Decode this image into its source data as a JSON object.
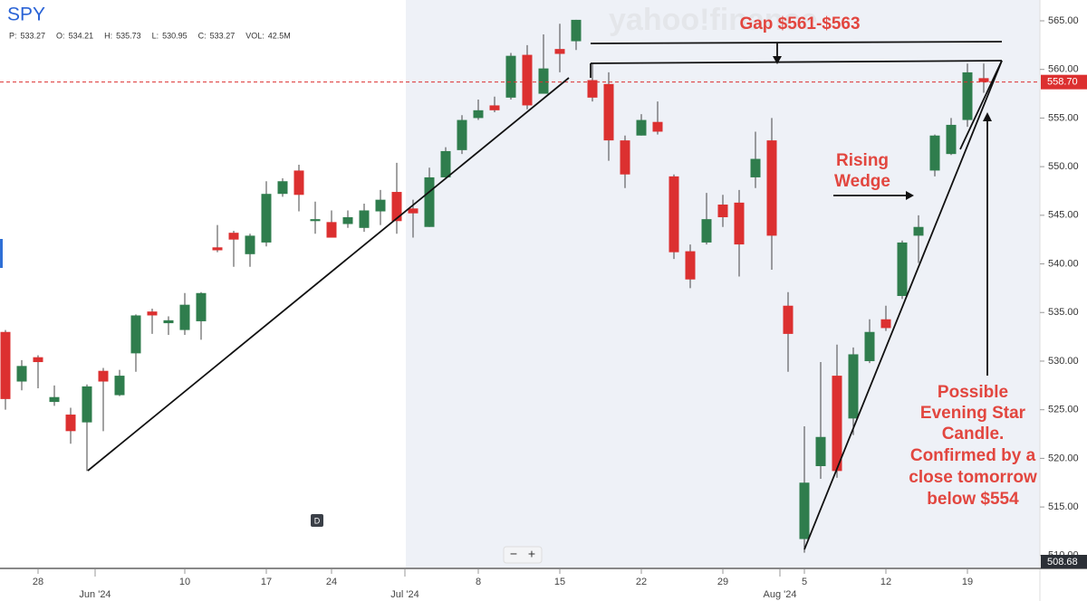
{
  "chart_data": {
    "type": "candlestick",
    "title": "SPY",
    "stats": [
      {
        "label": "P:",
        "value": "533.27"
      },
      {
        "label": "O:",
        "value": "534.21"
      },
      {
        "label": "H:",
        "value": "535.73"
      },
      {
        "label": "L:",
        "value": "530.95"
      },
      {
        "label": "C:",
        "value": "533.27"
      },
      {
        "label": "VOL:",
        "value": "42.5M"
      }
    ],
    "watermark": "yahoo!finance",
    "up_color": "#2f7d4d",
    "down_color": "#dc3030",
    "open": [
      533,
      527.9,
      530.4,
      525.8,
      524.5,
      523.7,
      529,
      526.5,
      530.8,
      535.1,
      533.9,
      533.2,
      534.1,
      541.7,
      543.2,
      541,
      542.2,
      547.2,
      549.6,
      544.4,
      544.3,
      544.1,
      543.7,
      545.4,
      547.4,
      545.7,
      543.8,
      548.9,
      551.7,
      555.0,
      556.3,
      557.1,
      561.5,
      557.5,
      562.1,
      562.9,
      558.9,
      558.5,
      552.7,
      553.2,
      554.6,
      549.0,
      541.3,
      542.2,
      546.1,
      546.3,
      548.9,
      552.7,
      535.7,
      511.7,
      519.2,
      528.5,
      524.1,
      530,
      534.3,
      536.7,
      542.9,
      549.6,
      551.3,
      554.8,
      559.1
    ],
    "high": [
      533.2,
      530.1,
      530.6,
      527.5,
      525.2,
      527.6,
      529.3,
      529.1,
      534.8,
      535.4,
      534.6,
      537.0,
      537.1,
      544.0,
      543.4,
      543.1,
      548.5,
      548.8,
      550.2,
      546.4,
      545.5,
      545.5,
      546.2,
      547.6,
      550.4,
      546.6,
      549.9,
      552.0,
      555.3,
      556.9,
      557.2,
      561.7,
      562.5,
      563.6,
      564.7,
      565.1,
      560.6,
      559.7,
      553.2,
      555.4,
      556.7,
      549.2,
      542.0,
      547.3,
      547.1,
      547.6,
      553.6,
      555.0,
      537.1,
      523.3,
      529.9,
      531.7,
      531.4,
      534.3,
      535.7,
      542.4,
      545.0,
      553.3,
      555.0,
      560.6,
      560.6
    ],
    "low": [
      525.0,
      527.0,
      527.2,
      525.4,
      521.5,
      518.7,
      522.8,
      526.4,
      528.9,
      532.8,
      532.7,
      532.7,
      532.2,
      541.2,
      539.7,
      539.7,
      541.8,
      546.9,
      545.4,
      543.1,
      542.7,
      543.7,
      543.3,
      544.0,
      543.1,
      542.7,
      543.8,
      548.7,
      551.3,
      554.8,
      555.6,
      556.9,
      555.9,
      557.5,
      559.7,
      562.0,
      556.7,
      550.6,
      547.8,
      553.2,
      553.3,
      540.5,
      537.5,
      542.0,
      543.8,
      538.7,
      547.8,
      539.4,
      528.9,
      510.3,
      517.9,
      518.0,
      522.4,
      529.8,
      533.1,
      536.4,
      540.1,
      549.0,
      551.2,
      554.1,
      557.6
    ],
    "close": [
      526.1,
      529.5,
      529.9,
      526.3,
      522.8,
      527.4,
      527.9,
      528.5,
      534.7,
      534.7,
      534.2,
      535.8,
      537.0,
      541.4,
      542.5,
      542.9,
      547.2,
      548.5,
      547.1,
      544.6,
      542.7,
      544.8,
      545.5,
      546.6,
      544.4,
      545.2,
      548.9,
      551.6,
      554.8,
      555.8,
      555.8,
      561.4,
      556.3,
      560.1,
      561.6,
      565.1,
      557.1,
      552.7,
      549.2,
      554.8,
      553.6,
      541.2,
      538.4,
      544.6,
      544.8,
      542.0,
      550.8,
      542.9,
      532.8,
      517.5,
      522.2,
      518.7,
      530.7,
      533.0,
      533.4,
      542.2,
      543.8,
      553.2,
      554.3,
      559.7,
      558.7
    ],
    "ylim": [
      508.68,
      567.14
    ],
    "yticks": [
      {
        "value": 510,
        "label": "510.00"
      },
      {
        "value": 515,
        "label": "515.00"
      },
      {
        "value": 520,
        "label": "520.00"
      },
      {
        "value": 525,
        "label": "525.00"
      },
      {
        "value": 530,
        "label": "530.00"
      },
      {
        "value": 535,
        "label": "535.00"
      },
      {
        "value": 540,
        "label": "540.00"
      },
      {
        "value": 545,
        "label": "545.00"
      },
      {
        "value": 550,
        "label": "550.00"
      },
      {
        "value": 555,
        "label": "555.00"
      },
      {
        "value": 560,
        "label": "560.00"
      },
      {
        "value": 565,
        "label": "565.00"
      }
    ],
    "xticks": [
      {
        "value": 2,
        "label": "28"
      },
      {
        "value": 11,
        "label": "10"
      },
      {
        "value": 16,
        "label": "17"
      },
      {
        "value": 20,
        "label": "24"
      },
      {
        "value": 29,
        "label": "8"
      },
      {
        "value": 34,
        "label": "15"
      },
      {
        "value": 39,
        "label": "22"
      },
      {
        "value": 44,
        "label": "29"
      },
      {
        "value": 49,
        "label": "5"
      },
      {
        "value": 54,
        "label": "12"
      },
      {
        "value": 59,
        "label": "19"
      }
    ],
    "month_ticks": [
      {
        "value": 5.5,
        "label": "Jun '24"
      },
      {
        "value": 24.5,
        "label": "Jul '24"
      },
      {
        "value": 47.5,
        "label": "Aug '24"
      }
    ],
    "last_price": {
      "value": 558.7,
      "label": "558.70"
    },
    "axis_min_label": {
      "value": 508.68,
      "label": "508.68"
    },
    "annotations": [
      {
        "lines": [
          "Gap $561-$563"
        ]
      },
      {
        "lines": [
          "Rising",
          "Wedge"
        ]
      },
      {
        "lines": [
          "Possible",
          "Evening Star",
          "Candle.",
          "Confirmed by a",
          "close tomorrow",
          "below $554"
        ]
      }
    ],
    "controls": {
      "interval": "D",
      "zoom_out": "−",
      "zoom_in": "+"
    }
  }
}
